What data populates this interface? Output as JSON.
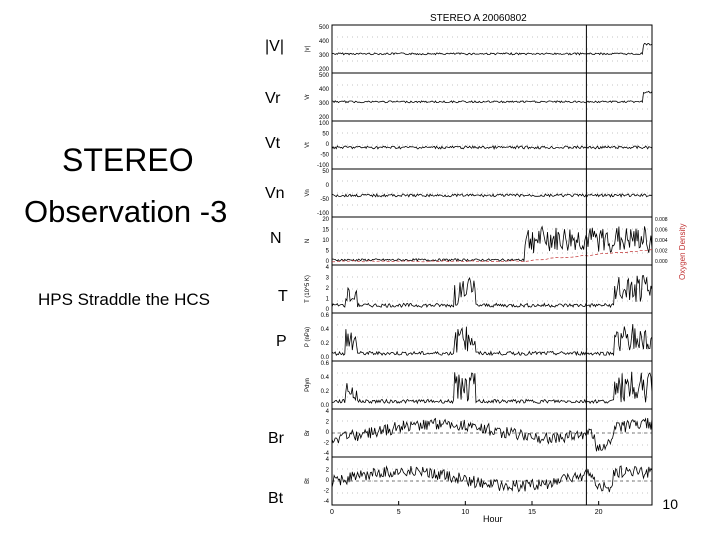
{
  "slide": {
    "title_line1": "STEREO",
    "title_line2": "Observation -3",
    "subtitle": "HPS Straddle the HCS",
    "page_number": "10"
  },
  "panel_labels": [
    "|V|",
    "Vr",
    "Vt",
    "Vn",
    "N",
    "T",
    "P",
    "Br",
    "Bt"
  ],
  "figure": {
    "header": "STEREO A  20060802",
    "x_axis_label": "Hour",
    "x_ticks": [
      "0",
      "5",
      "10",
      "15",
      "20"
    ],
    "oxygen_label": "Oxygen Density",
    "oxygen_ticks": [
      "0.000",
      "0.002",
      "0.004",
      "0.006",
      "0.008"
    ],
    "panels": [
      {
        "axis": "|v|",
        "ticks": [
          "500",
          "400",
          "300",
          "200"
        ]
      },
      {
        "axis": "Vr",
        "ticks": [
          "500",
          "400",
          "300",
          "200"
        ]
      },
      {
        "axis": "Vt",
        "ticks": [
          "100",
          "50",
          "0",
          "-50",
          "-100"
        ]
      },
      {
        "axis": "Vn",
        "ticks": [
          "50",
          "0",
          "-50",
          "-100"
        ]
      },
      {
        "axis": "N",
        "ticks": [
          "20",
          "15",
          "10",
          "5",
          "0"
        ]
      },
      {
        "axis": "T (10^5 K)",
        "ticks": [
          "4",
          "3",
          "2",
          "1",
          "0"
        ]
      },
      {
        "axis": "P (nPa)",
        "ticks": [
          "0.6",
          "0.4",
          "0.2",
          "0.0"
        ]
      },
      {
        "axis": "Pdyn",
        "ticks": [
          "0.6",
          "0.4",
          "0.2",
          "0.0"
        ]
      },
      {
        "axis": "Br",
        "ticks": [
          "4",
          "2",
          "0",
          "-2",
          "-4"
        ]
      },
      {
        "axis": "Bt",
        "ticks": [
          "4",
          "2",
          "0",
          "-2",
          "-4"
        ]
      }
    ]
  }
}
